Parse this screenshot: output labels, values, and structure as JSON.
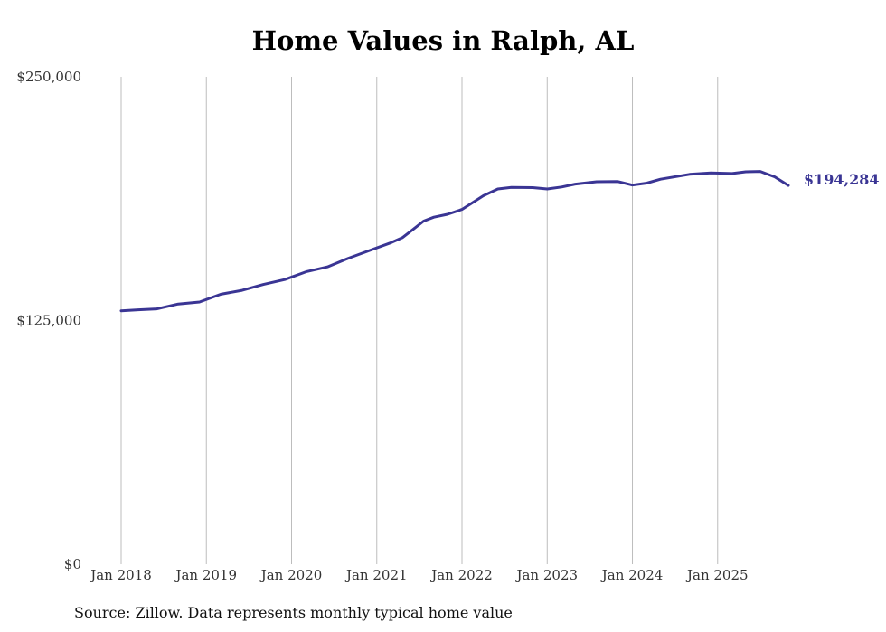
{
  "chart_data": {
    "type": "line",
    "title": "Home Values in Ralph, AL",
    "source": "Source: Zillow. Data represents monthly typical home value",
    "xlabel": "",
    "ylabel": "",
    "ylim": [
      0,
      250000
    ],
    "y_ticks": [
      {
        "value": 0,
        "label": "$0"
      },
      {
        "value": 125000,
        "label": "$125,000"
      },
      {
        "value": 250000,
        "label": "$250,000"
      }
    ],
    "x_ticks": [
      {
        "value": 2018,
        "label": "Jan 2018"
      },
      {
        "value": 2019,
        "label": "Jan 2019"
      },
      {
        "value": 2020,
        "label": "Jan 2020"
      },
      {
        "value": 2021,
        "label": "Jan 2021"
      },
      {
        "value": 2022,
        "label": "Jan 2022"
      },
      {
        "value": 2023,
        "label": "Jan 2023"
      },
      {
        "value": 2024,
        "label": "Jan 2024"
      },
      {
        "value": 2025,
        "label": "Jan 2025"
      }
    ],
    "xlim": [
      2018,
      2025.83
    ],
    "last_value_label": "$194,284",
    "line_color": "#3a3594",
    "grid": "vertical",
    "series": [
      {
        "name": "Home value",
        "x": [
          2018.0,
          2018.2,
          2018.42,
          2018.67,
          2018.92,
          2019.17,
          2019.42,
          2019.67,
          2019.92,
          2020.17,
          2020.42,
          2020.67,
          2020.92,
          2021.17,
          2021.3,
          2021.42,
          2021.55,
          2021.67,
          2021.83,
          2022.0,
          2022.25,
          2022.42,
          2022.58,
          2022.83,
          2023.0,
          2023.17,
          2023.33,
          2023.58,
          2023.83,
          2024.0,
          2024.17,
          2024.33,
          2024.67,
          2024.92,
          2025.17,
          2025.33,
          2025.5,
          2025.67,
          2025.83
        ],
        "values": [
          130000,
          130500,
          131000,
          133500,
          134500,
          138500,
          140500,
          143500,
          146000,
          150000,
          152500,
          157000,
          161000,
          165000,
          167500,
          171500,
          176000,
          178000,
          179500,
          182000,
          189000,
          192500,
          193300,
          193200,
          192500,
          193500,
          195000,
          196200,
          196300,
          194500,
          195500,
          197500,
          200000,
          200700,
          200400,
          201300,
          201500,
          198700,
          194284
        ]
      }
    ]
  }
}
